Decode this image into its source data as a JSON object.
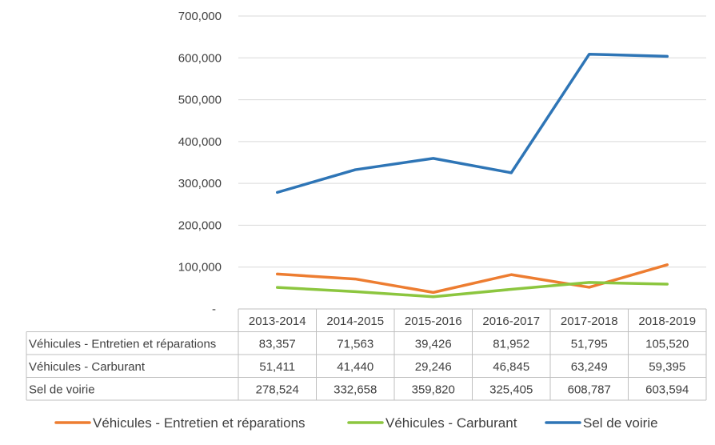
{
  "chart_data": {
    "type": "line",
    "title": "",
    "xlabel": "",
    "ylabel": "",
    "categories": [
      "2013-2014",
      "2014-2015",
      "2015-2016",
      "2016-2017",
      "2017-2018",
      "2018-2019"
    ],
    "ylim": [
      0,
      700000
    ],
    "y_ticks": [
      {
        "value": 0,
        "label": "-"
      },
      {
        "value": 100000,
        "label": "100,000"
      },
      {
        "value": 200000,
        "label": "200,000"
      },
      {
        "value": 300000,
        "label": "300,000"
      },
      {
        "value": 400000,
        "label": "400,000"
      },
      {
        "value": 500000,
        "label": "500,000"
      },
      {
        "value": 600000,
        "label": "600,000"
      },
      {
        "value": 700000,
        "label": "700,000"
      }
    ],
    "grid": true,
    "legend_position": "bottom",
    "series": [
      {
        "name": "Véhicules - Entretien et réparations",
        "color": "#ED7D31",
        "values": [
          83357,
          71563,
          39426,
          81952,
          51795,
          105520
        ],
        "labels": [
          "83,357",
          "71,563",
          "39,426",
          "81,952",
          "51,795",
          "105,520"
        ]
      },
      {
        "name": "Véhicules - Carburant",
        "color": "#8CC63F",
        "values": [
          51411,
          41440,
          29246,
          46845,
          63249,
          59395
        ],
        "labels": [
          "51,411",
          "41,440",
          "29,246",
          "46,845",
          "63,249",
          "59,395"
        ]
      },
      {
        "name": "Sel de voirie",
        "color": "#2E75B6",
        "values": [
          278524,
          332658,
          359820,
          325405,
          608787,
          603594
        ],
        "labels": [
          "278,524",
          "332,658",
          "359,820",
          "325,405",
          "608,787",
          "603,594"
        ]
      }
    ]
  }
}
